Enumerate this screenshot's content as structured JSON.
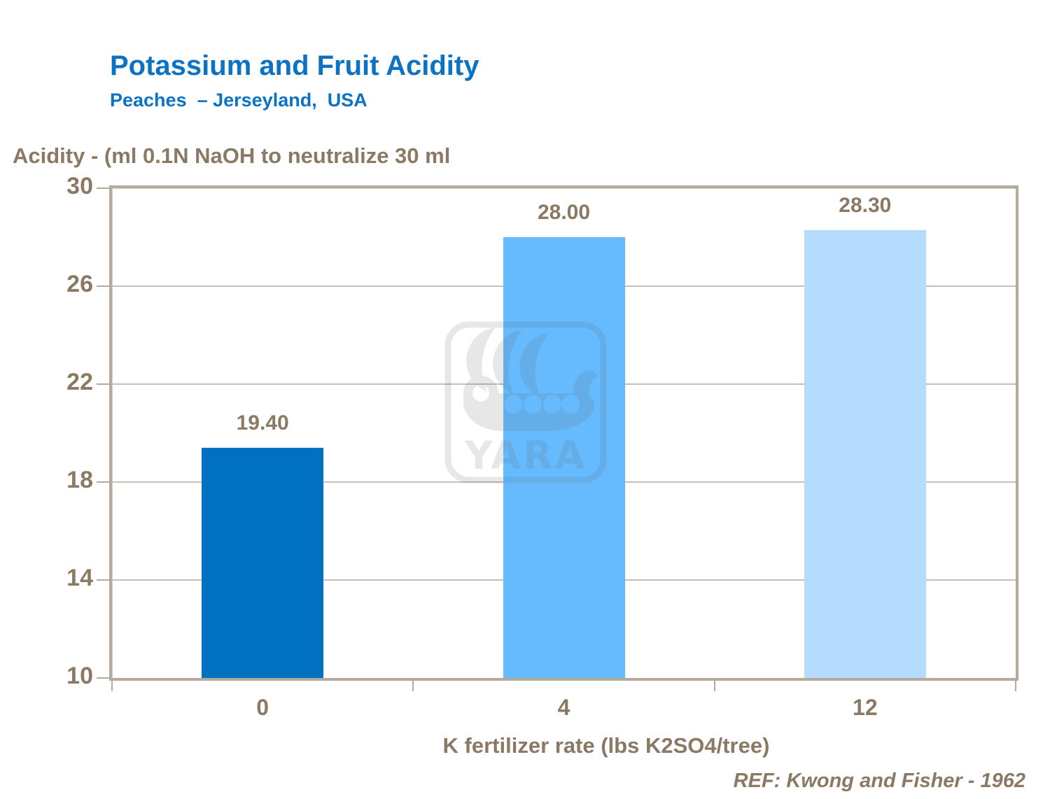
{
  "header": {
    "title": "Potassium and Fruit Acidity",
    "subtitle": "Peaches  – Jerseyland,  USA"
  },
  "chart_data": {
    "type": "bar",
    "title": "Potassium and Fruit Acidity",
    "subtitle": "Peaches – Jerseyland, USA",
    "y_axis_title": "Acidity - (ml 0.1N NaOH to neutralize 30 ml",
    "x_axis_title": "K fertilizer rate (lbs K2SO4/tree)",
    "categories": [
      "0",
      "4",
      "12"
    ],
    "values": [
      19.4,
      28.0,
      28.3
    ],
    "value_labels": [
      "19.40",
      "28.00",
      "28.30"
    ],
    "bar_colors": [
      "#0070c0",
      "#66bbff",
      "#b5dcff"
    ],
    "ylim": [
      10,
      30
    ],
    "yticks": [
      10,
      14,
      18,
      22,
      26,
      30
    ],
    "grid": "horizontal gridlines on",
    "legend": "none"
  },
  "footer": {
    "reference": "REF: Kwong and Fisher - 1962"
  },
  "watermark": {
    "text": "YARA",
    "name": "yara-viking-ship-logo"
  },
  "colors": {
    "title_blue": "#0b72c4",
    "text_brown": "#8a7a65",
    "axis_tan": "#b4aa9e",
    "gridline_tan": "#c8c0b4",
    "background": "#ffffff"
  }
}
